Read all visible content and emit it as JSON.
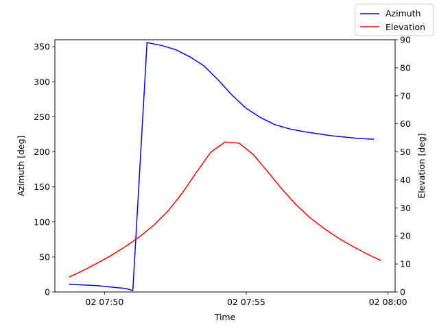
{
  "chart_data": {
    "type": "line",
    "xlabel": "Time",
    "ylabel_left": "Azimuth [deg]",
    "ylabel_right": "Elevation [deg]",
    "x_ticks": [
      "02 07:50",
      "02 07:55",
      "02 08:00"
    ],
    "x_range": [
      "07:48:15",
      "08:00:15"
    ],
    "y_left_ticks": [
      "0",
      "50",
      "100",
      "150",
      "200",
      "250",
      "300",
      "350"
    ],
    "y_left_range": [
      0,
      360
    ],
    "y_right_ticks": [
      "0",
      "10",
      "20",
      "30",
      "40",
      "50",
      "60",
      "70",
      "80",
      "90"
    ],
    "y_right_range": [
      0,
      90
    ],
    "legend_position": "top-right",
    "grid": false,
    "series": [
      {
        "name": "Azimuth",
        "color": "#0000ff",
        "axis": "left",
        "x": [
          "07:48:45",
          "07:49:15",
          "07:49:45",
          "07:50:15",
          "07:50:45",
          "07:51:00",
          "07:51:30",
          "07:52:00",
          "07:52:30",
          "07:53:00",
          "07:53:30",
          "07:54:00",
          "07:54:30",
          "07:55:00",
          "07:55:30",
          "07:56:00",
          "07:56:30",
          "07:57:00",
          "07:57:30",
          "07:58:00",
          "07:58:30",
          "07:59:00",
          "07:59:30"
        ],
        "values": [
          11,
          10,
          9,
          7,
          5,
          2,
          356,
          352,
          346,
          336,
          323,
          303,
          281,
          262,
          249,
          239,
          233,
          229,
          226,
          223,
          221,
          219,
          218
        ]
      },
      {
        "name": "Elevation",
        "color": "#ff0000",
        "axis": "right",
        "x": [
          "07:48:45",
          "07:49:15",
          "07:49:45",
          "07:50:15",
          "07:50:45",
          "07:51:15",
          "07:51:45",
          "07:52:15",
          "07:52:45",
          "07:53:15",
          "07:53:45",
          "07:54:15",
          "07:54:45",
          "07:55:15",
          "07:55:45",
          "07:56:15",
          "07:56:45",
          "07:57:15",
          "07:57:45",
          "07:58:15",
          "07:58:45",
          "07:59:15",
          "07:59:45"
        ],
        "values": [
          5.3,
          7.7,
          10.3,
          13.1,
          16.3,
          19.8,
          23.9,
          29.0,
          35.4,
          42.8,
          49.9,
          53.5,
          53.1,
          49.0,
          43.0,
          36.8,
          31.2,
          26.5,
          22.6,
          19.2,
          16.3,
          13.6,
          11.2
        ]
      }
    ]
  }
}
